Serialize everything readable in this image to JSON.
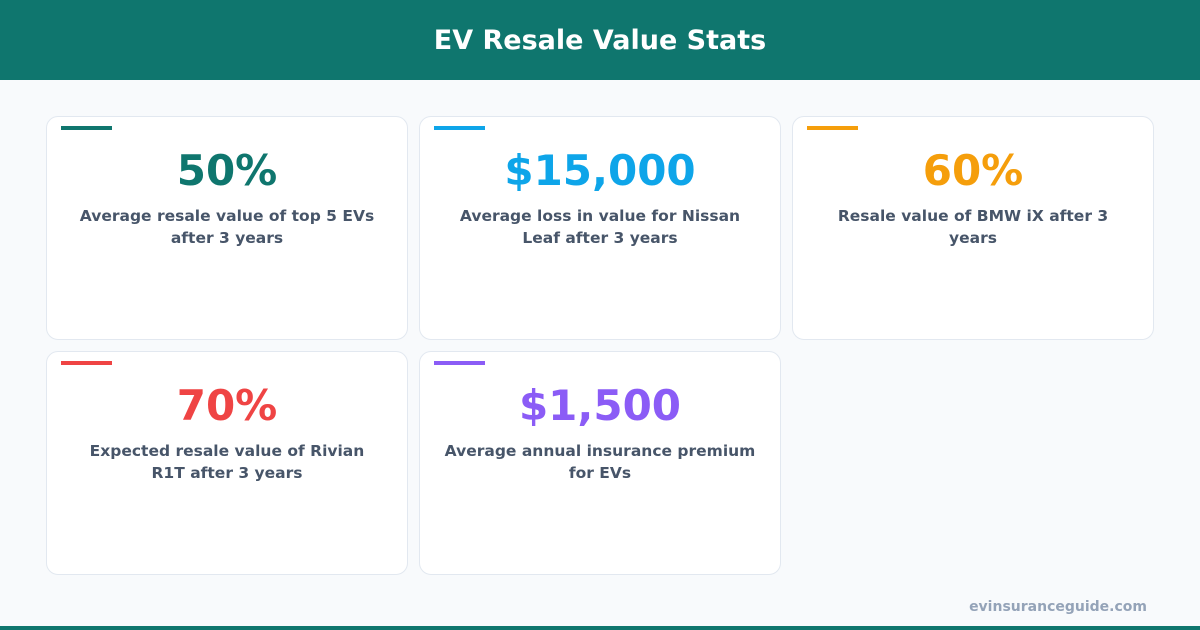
{
  "header": {
    "title": "EV Resale Value Stats"
  },
  "cards": [
    {
      "value": "50%",
      "description": "Average resale value of top 5 EVs after 3 years",
      "color": "#0f766e"
    },
    {
      "value": "$15,000",
      "description": "Average loss in value for Nissan Leaf after 3 years",
      "color": "#0ea5e9"
    },
    {
      "value": "60%",
      "description": "Resale value of BMW iX after 3 years",
      "color": "#f59e0b"
    },
    {
      "value": "70%",
      "description": "Expected resale value of Rivian R1T after 3 years",
      "color": "#ef4444"
    },
    {
      "value": "$1,500",
      "description": "Average annual insurance premium for EVs",
      "color": "#8b5cf6"
    }
  ],
  "footer": {
    "site": "evinsuranceguide.com"
  }
}
